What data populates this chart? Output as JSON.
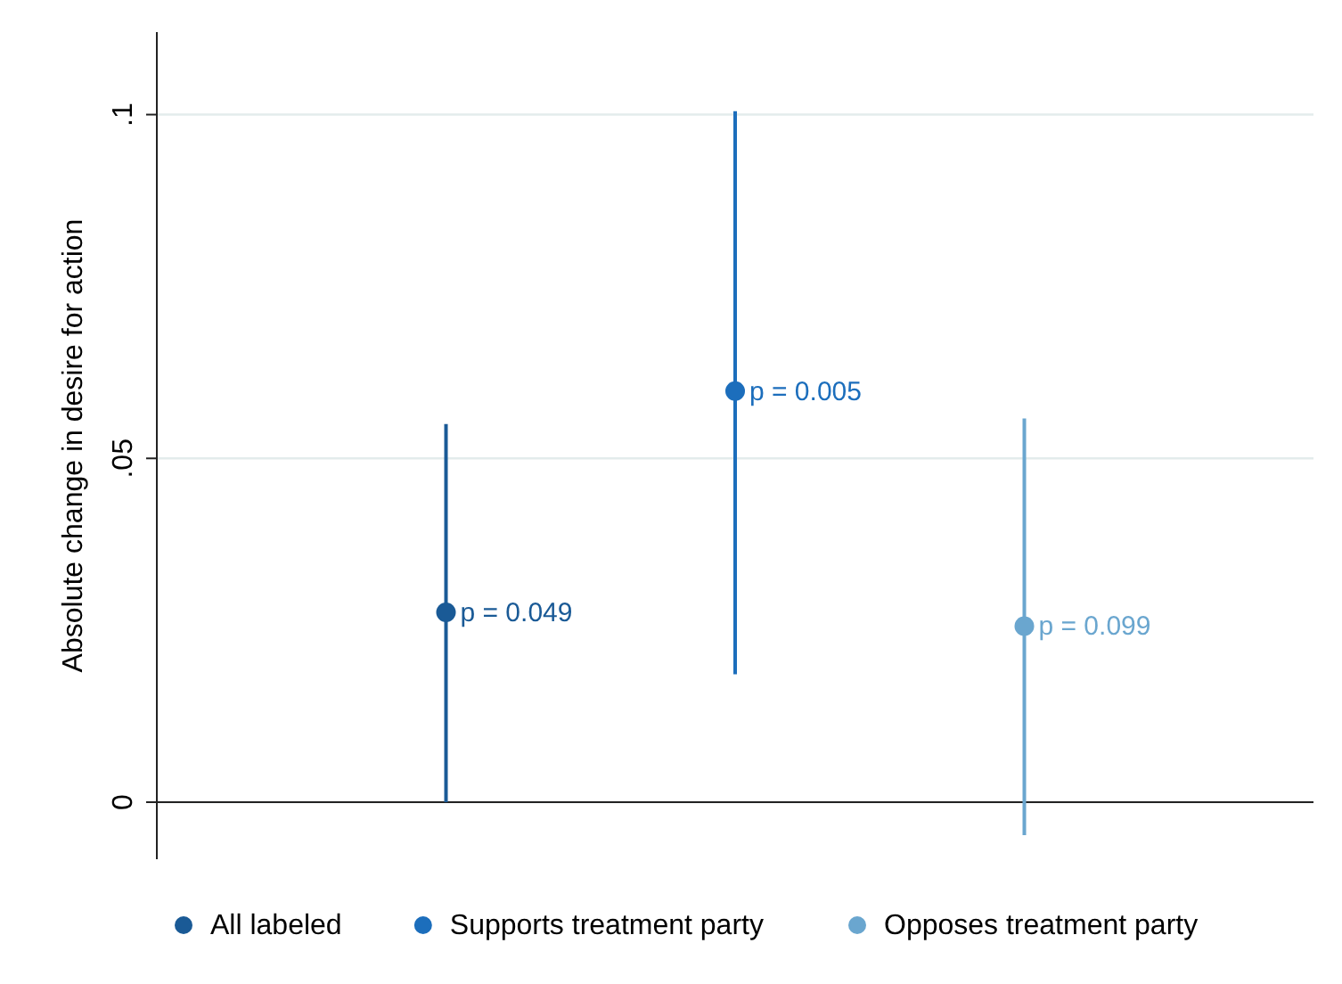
{
  "chart_data": {
    "type": "scatter",
    "ylabel": "Absolute change in desire for action",
    "categories": [
      null,
      null,
      null
    ],
    "series": [
      {
        "name": "All labeled",
        "color": "#1a5a96",
        "values": [
          0.0276,
          null,
          null
        ],
        "errors": [
          [
            0.0,
            0.055
          ],
          null,
          null
        ]
      },
      {
        "name": "Supports treatment party",
        "color": "#1c6ebc",
        "values": [
          null,
          0.0598,
          null
        ],
        "errors": [
          null,
          [
            0.0186,
            0.1005
          ],
          null
        ]
      },
      {
        "name": "Opposes treatment party",
        "color": "#6aa6cf",
        "values": [
          null,
          null,
          0.0256
        ],
        "errors": [
          null,
          null,
          [
            -0.0048,
            0.0558
          ]
        ]
      }
    ],
    "ylim": [
      -0.0083,
      0.112
    ],
    "yticks": [
      {
        "value": 0,
        "label": "0"
      },
      {
        "value": 0.05,
        "label": ".05"
      },
      {
        "value": 0.1,
        "label": ".1"
      }
    ],
    "annotations": [
      "p = 0.049",
      "p = 0.005",
      "p = 0.099"
    ],
    "grid": "y",
    "legend": "bottom",
    "marker": "circle",
    "ref_lines": [
      {
        "axis": "y",
        "value": 0,
        "color": "#222222"
      }
    ]
  }
}
